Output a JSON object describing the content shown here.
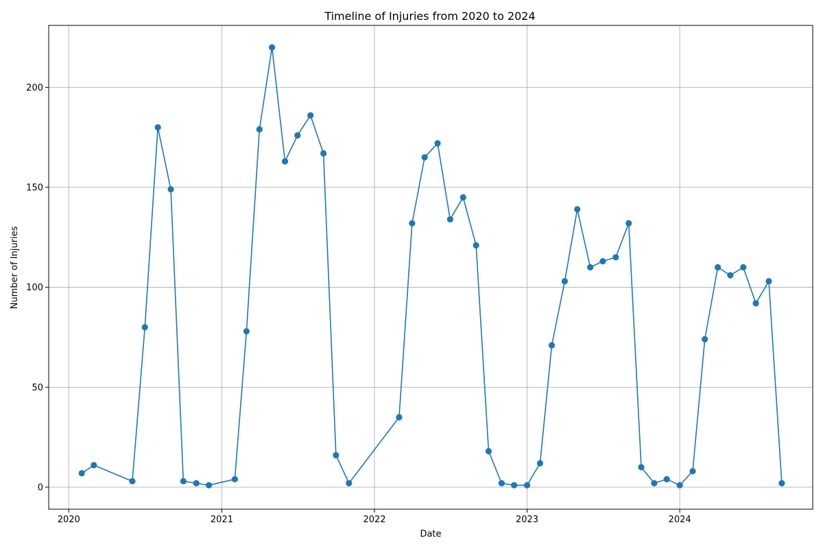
{
  "chart_data": {
    "type": "line",
    "title": "Timeline of Injuries from 2020 to 2024",
    "xlabel": "Date",
    "ylabel": "Number of Injuries",
    "x_ticks": [
      "2020",
      "2021",
      "2022",
      "2023",
      "2024"
    ],
    "y_ticks": [
      0,
      50,
      100,
      150,
      200
    ],
    "xlim": [
      "2019-11-14",
      "2024-11-14"
    ],
    "ylim": [
      -11,
      231
    ],
    "grid": true,
    "line_color": "#1f77b4",
    "marker": "circle",
    "series": [
      {
        "x": [
          "2020-02-01",
          "2020-03-01",
          "2020-06-01",
          "2020-07-01",
          "2020-08-01",
          "2020-09-01",
          "2020-10-01",
          "2020-11-01",
          "2020-12-01",
          "2021-02-01",
          "2021-03-01",
          "2021-04-01",
          "2021-05-01",
          "2021-06-01",
          "2021-07-01",
          "2021-08-01",
          "2021-09-01",
          "2021-10-01",
          "2021-11-01",
          "2022-03-01",
          "2022-04-01",
          "2022-05-01",
          "2022-06-01",
          "2022-07-01",
          "2022-08-01",
          "2022-09-01",
          "2022-10-01",
          "2022-11-01",
          "2022-12-01",
          "2023-01-01",
          "2023-02-01",
          "2023-03-01",
          "2023-04-01",
          "2023-05-01",
          "2023-06-01",
          "2023-07-01",
          "2023-08-01",
          "2023-09-01",
          "2023-10-01",
          "2023-11-01",
          "2023-12-01",
          "2024-01-01",
          "2024-02-01",
          "2024-03-01",
          "2024-04-01",
          "2024-05-01",
          "2024-06-01",
          "2024-07-01",
          "2024-08-01",
          "2024-09-01"
        ],
        "values": [
          7,
          11,
          3,
          80,
          180,
          149,
          3,
          2,
          1,
          4,
          78,
          179,
          220,
          163,
          176,
          186,
          167,
          16,
          2,
          35,
          132,
          165,
          172,
          134,
          145,
          121,
          18,
          2,
          1,
          1,
          12,
          71,
          103,
          139,
          110,
          113,
          115,
          132,
          10,
          2,
          4,
          1,
          8,
          74,
          110,
          106,
          110,
          92,
          103,
          2
        ]
      }
    ]
  }
}
